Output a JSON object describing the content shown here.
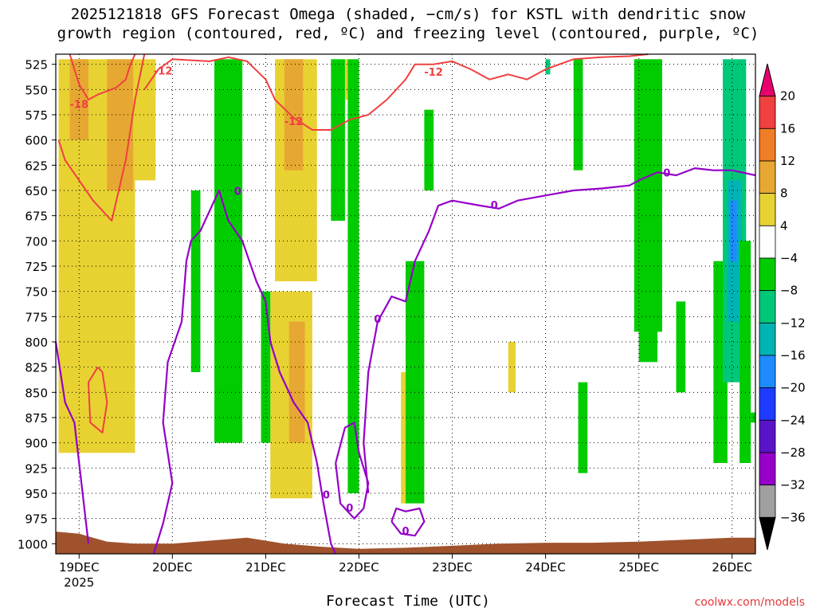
{
  "title_line1": "2025121818 GFS Forecast Omega (shaded, −cm/s) for KSTL with dendritic snow",
  "title_line2": "growth region (contoured, red, ºC) and freezing level (contoured, purple, ºC)",
  "credit": "coolwx.com/models",
  "colors": {
    "red_contour": "#f04040",
    "purple_contour": "#9400c8",
    "ground": "#a0522d"
  },
  "chart_data": {
    "type": "heatmap",
    "title": "2025121818 GFS Forecast Omega (shaded, −cm/s) for KSTL with dendritic snow growth region (contoured, red, ºC) and freezing level (contoured, purple, ºC)",
    "xlabel": "Forecast Time (UTC)",
    "ylabel": "",
    "y_ticks": [
      525,
      550,
      575,
      600,
      625,
      650,
      675,
      700,
      725,
      750,
      775,
      800,
      825,
      850,
      875,
      900,
      925,
      950,
      975,
      1000
    ],
    "ylim": [
      1010,
      515
    ],
    "x_ticks": [
      "19DEC",
      "20DEC",
      "21DEC",
      "22DEC",
      "23DEC",
      "24DEC",
      "25DEC",
      "26DEC"
    ],
    "x_year_label": "2025",
    "xlim_days": [
      18.75,
      26.25
    ],
    "grid": true,
    "colorbar": {
      "labels": [
        "20",
        "16",
        "12",
        "8",
        "4",
        "−4",
        "−8",
        "−12",
        "−16",
        "−20",
        "−24",
        "−28",
        "−32",
        "−36"
      ],
      "colors": [
        "#e8006e",
        "#f04040",
        "#f07d28",
        "#e6a832",
        "#e8d232",
        "#ffffff",
        "#00cc00",
        "#00c878",
        "#00b4b4",
        "#1e8cff",
        "#1e3cff",
        "#5a14c8",
        "#9600c8",
        "#a0a0a0",
        "#000000"
      ]
    },
    "contour_labels": [
      {
        "text": "-12",
        "color": "red",
        "x": 19.9,
        "p": 532
      },
      {
        "text": "-18",
        "color": "red",
        "x": 19.0,
        "p": 565
      },
      {
        "text": "-12",
        "color": "red",
        "x": 21.3,
        "p": 582
      },
      {
        "text": "-12",
        "color": "red",
        "x": 22.8,
        "p": 533
      },
      {
        "text": "0",
        "color": "purple",
        "x": 20.7,
        "p": 651
      },
      {
        "text": "0",
        "color": "purple",
        "x": 22.2,
        "p": 778
      },
      {
        "text": "0",
        "color": "purple",
        "x": 23.45,
        "p": 665
      },
      {
        "text": "0",
        "color": "purple",
        "x": 25.3,
        "p": 633
      },
      {
        "text": "0",
        "color": "purple",
        "x": 21.65,
        "p": 952
      },
      {
        "text": "0",
        "color": "purple",
        "x": 21.9,
        "p": 965
      },
      {
        "text": "0",
        "color": "purple",
        "x": 22.5,
        "p": 988
      }
    ]
  }
}
